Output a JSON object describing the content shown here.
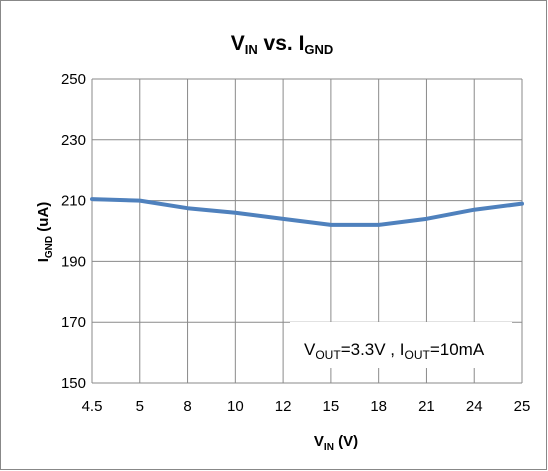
{
  "chart_data": {
    "type": "line",
    "title": {
      "main": "V",
      "main_sub": "IN",
      "rest": " vs.  I",
      "rest_sub": "GND"
    },
    "xlabel": {
      "main": "V",
      "sub": "IN",
      "rest": "  (V)"
    },
    "ylabel": {
      "main": "I",
      "sub": "GND",
      "rest": "  (uA)"
    },
    "categories": [
      "4.5",
      "5",
      "8",
      "10",
      "12",
      "15",
      "18",
      "21",
      "24",
      "25"
    ],
    "series": [
      {
        "values": [
          210.5,
          210,
          207.5,
          206,
          204,
          202,
          202,
          204,
          207,
          209
        ],
        "color": "#4f81bd"
      }
    ],
    "ylim": [
      150,
      250
    ],
    "yticks": [
      "150",
      "170",
      "190",
      "210",
      "230",
      "250"
    ],
    "grid": true,
    "annotation": {
      "a": "V",
      "a_sub": "OUT",
      "b": "=3.3V , I",
      "b_sub": "OUT",
      "c": "=10mA"
    }
  }
}
